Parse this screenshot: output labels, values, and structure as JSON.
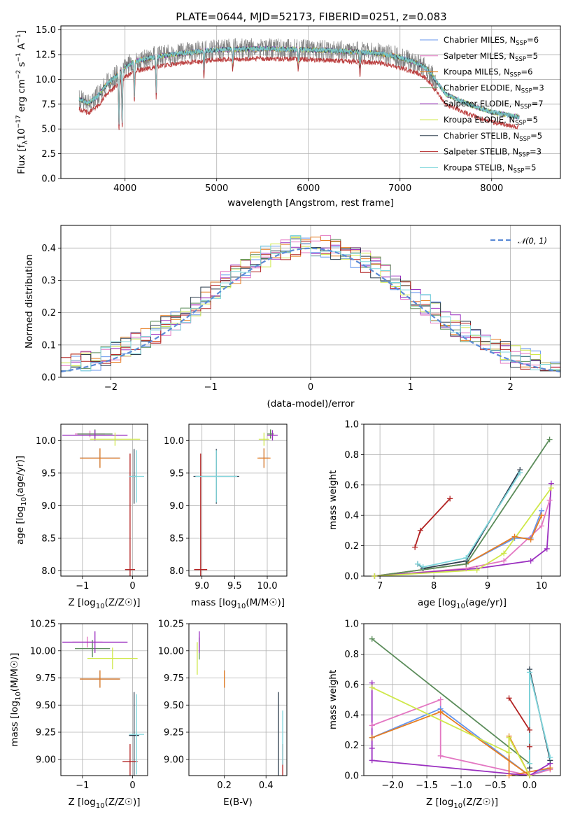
{
  "figure_title": "PLATE=0644, MJD=52173, FIBERID=0251, z=0.083",
  "colors": {
    "Chabrier MILES": "#6495ed",
    "Salpeter MILES": "#e377c2",
    "Kroupa MILES": "#e67e22",
    "Chabrier ELODIE": "#5b8c5a",
    "Salpeter ELODIE": "#9b30c0",
    "Kroupa ELODIE": "#cfe84a",
    "Chabrier STELIB": "#2f3f4f",
    "Salpeter STELIB": "#b22222",
    "Kroupa STELIB": "#7fd6dc",
    "gaussian": "#5b8bd6",
    "grid": "#b0b0b0"
  },
  "chart_data": [
    {
      "id": "spectrum",
      "type": "line",
      "xlabel": "wavelength [Angstrom, rest frame]",
      "ylabel_parts": [
        "Flux [f",
        "λ",
        "10",
        "−17",
        " erg cm",
        "−2",
        " s",
        "−1",
        " A",
        "−1",
        "]"
      ],
      "xlim": [
        3300,
        8750
      ],
      "ylim": [
        0,
        15.4
      ],
      "xticks": [
        4000,
        5000,
        6000,
        7000,
        8000
      ],
      "yticks": [
        0.0,
        2.5,
        5.0,
        7.5,
        10.0,
        12.5,
        15.0
      ],
      "legend_location": "right",
      "legend": [
        {
          "name": "Chabrier MILES",
          "nssp": "6"
        },
        {
          "name": "Salpeter MILES",
          "nssp": "5"
        },
        {
          "name": "Kroupa MILES",
          "nssp": "6"
        },
        {
          "name": "Chabrier ELODIE",
          "nssp": "3"
        },
        {
          "name": "Salpeter ELODIE",
          "nssp": "7"
        },
        {
          "name": "Kroupa ELODIE",
          "nssp": "5"
        },
        {
          "name": "Chabrier STELIB",
          "nssp": "5"
        },
        {
          "name": "Salpeter STELIB",
          "nssp": "3"
        },
        {
          "name": "Kroupa STELIB",
          "nssp": "5"
        }
      ],
      "nssp_label": "N",
      "nssp_sub": "SSP",
      "data_series": {
        "color": "#808080",
        "range": [
          3500,
          7400
        ]
      },
      "model_profile": {
        "x": [
          3500,
          3600,
          3700,
          3800,
          3900,
          4000,
          4100,
          4300,
          4500,
          4800,
          5000,
          5500,
          6000,
          6500,
          6800,
          7000,
          7200,
          7300,
          7500,
          7800,
          8000,
          8300
        ],
        "y": [
          8.0,
          7.6,
          8.3,
          9.5,
          10.3,
          11.2,
          11.8,
          12.2,
          12.5,
          12.8,
          13.0,
          13.1,
          13.0,
          12.8,
          12.6,
          12.2,
          11.6,
          11.0,
          8.5,
          7.3,
          6.7,
          6.2
        ]
      },
      "salpeter_stelib_offset": -1.0
    },
    {
      "id": "residuals",
      "type": "histogram",
      "xlabel": "(data-model)/error",
      "ylabel": "Normed distribution",
      "xlim": [
        -2.5,
        2.5
      ],
      "ylim": [
        0,
        0.47
      ],
      "xticks": [
        -2,
        -1,
        0,
        1,
        2
      ],
      "yticks": [
        0.0,
        0.1,
        0.2,
        0.3,
        0.4
      ],
      "bin_width": 0.1,
      "legend_location": "upper right",
      "gaussian_label": "𝒩(0, 1)",
      "gaussian": {
        "mean": 0,
        "sigma": 1
      }
    },
    {
      "id": "age-vs-Z",
      "type": "errorbar",
      "xlabel": "Z [log10(Z/Z☉)]",
      "ylabel": "age [log10(age/yr)]",
      "xlim": [
        -1.43,
        0.3
      ],
      "ylim": [
        7.92,
        10.25
      ],
      "xticks": [
        -1,
        0
      ],
      "yticks": [
        8.0,
        8.5,
        9.0,
        9.5,
        10.0
      ],
      "points": [
        {
          "model": "Chabrier MILES",
          "x": -0.65,
          "xerr": 0.4,
          "y": 9.73,
          "yerr": 0.15
        },
        {
          "model": "Salpeter MILES",
          "x": -0.85,
          "xerr": 0.3,
          "y": 10.1,
          "yerr": 0.05
        },
        {
          "model": "Kroupa MILES",
          "x": -0.65,
          "xerr": 0.4,
          "y": 9.73,
          "yerr": 0.15
        },
        {
          "model": "Chabrier ELODIE",
          "x": -0.75,
          "xerr": 0.35,
          "y": 10.1,
          "yerr": 0.07
        },
        {
          "model": "Salpeter ELODIE",
          "x": -0.75,
          "xerr": 0.65,
          "y": 10.08,
          "yerr": 0.08
        },
        {
          "model": "Kroupa ELODIE",
          "x": -0.35,
          "xerr": 0.5,
          "y": 10.02,
          "yerr": 0.1
        },
        {
          "model": "Chabrier STELIB",
          "x": 0.03,
          "xerr": 0.05,
          "y": 9.45,
          "yerr": 0.42
        },
        {
          "model": "Salpeter STELIB",
          "x": -0.05,
          "xerr": 0.1,
          "y": 8.02,
          "yerr": 1.78
        },
        {
          "model": "Kroupa STELIB",
          "x": 0.08,
          "xerr": 0.15,
          "y": 9.45,
          "yerr": 0.4
        }
      ]
    },
    {
      "id": "age-vs-mass",
      "type": "errorbar",
      "xlabel": "mass [log10(M/M☉)]",
      "ylabel": "",
      "xlim": [
        8.8,
        10.3
      ],
      "ylim": [
        7.92,
        10.25
      ],
      "xticks": [
        9.0,
        9.5,
        10.0
      ],
      "yticks": [
        8.0,
        8.5,
        9.0,
        9.5,
        10.0
      ],
      "points": [
        {
          "model": "Chabrier MILES",
          "x": 9.95,
          "xerr": 0.08,
          "y": 9.73,
          "yerr": 0.15
        },
        {
          "model": "Salpeter MILES",
          "x": 10.08,
          "xerr": 0.05,
          "y": 10.08,
          "yerr": 0.05
        },
        {
          "model": "Kroupa MILES",
          "x": 9.95,
          "xerr": 0.1,
          "y": 9.73,
          "yerr": 0.15
        },
        {
          "model": "Chabrier ELODIE",
          "x": 10.05,
          "xerr": 0.05,
          "y": 10.1,
          "yerr": 0.07
        },
        {
          "model": "Salpeter ELODIE",
          "x": 10.08,
          "xerr": 0.08,
          "y": 10.08,
          "yerr": 0.08
        },
        {
          "model": "Kroupa ELODIE",
          "x": 9.95,
          "xerr": 0.08,
          "y": 10.02,
          "yerr": 0.1
        },
        {
          "model": "Chabrier STELIB",
          "x": 9.22,
          "xerr": 0.35,
          "y": 9.45,
          "yerr": 0.42
        },
        {
          "model": "Salpeter STELIB",
          "x": 8.98,
          "xerr": 0.1,
          "y": 8.02,
          "yerr": 1.78
        },
        {
          "model": "Kroupa STELIB",
          "x": 9.22,
          "xerr": 0.32,
          "y": 9.45,
          "yerr": 0.4
        }
      ]
    },
    {
      "id": "weight-vs-age",
      "type": "line",
      "xlabel": "age [log10(age/yr)]",
      "ylabel": "mass weight",
      "xlim": [
        6.7,
        10.35
      ],
      "ylim": [
        0,
        1.0
      ],
      "xticks": [
        7,
        8,
        9,
        10
      ],
      "yticks": [
        0.0,
        0.2,
        0.4,
        0.6,
        0.8,
        1.0
      ],
      "series": [
        {
          "model": "Chabrier MILES",
          "x": [
            6.9,
            8.6,
            9.5,
            9.8,
            10.0
          ],
          "y": [
            0.0,
            0.08,
            0.25,
            0.25,
            0.43
          ]
        },
        {
          "model": "Salpeter MILES",
          "x": [
            6.9,
            8.6,
            9.3,
            10.0,
            10.15
          ],
          "y": [
            0.0,
            0.05,
            0.1,
            0.33,
            0.5
          ]
        },
        {
          "model": "Kroupa MILES",
          "x": [
            6.9,
            8.6,
            9.5,
            9.8,
            10.0
          ],
          "y": [
            0.0,
            0.08,
            0.26,
            0.24,
            0.4
          ]
        },
        {
          "model": "Chabrier ELODIE",
          "x": [
            6.9,
            8.6,
            10.15
          ],
          "y": [
            0.0,
            0.08,
            0.9
          ]
        },
        {
          "model": "Salpeter ELODIE",
          "x": [
            6.9,
            8.8,
            9.8,
            10.1,
            10.18
          ],
          "y": [
            0.0,
            0.05,
            0.1,
            0.18,
            0.61
          ]
        },
        {
          "model": "Kroupa ELODIE",
          "x": [
            6.9,
            8.8,
            9.3,
            10.18
          ],
          "y": [
            0.0,
            0.04,
            0.15,
            0.58
          ]
        },
        {
          "model": "Chabrier STELIB",
          "x": [
            7.7,
            7.8,
            8.6,
            9.6
          ],
          "y": [
            0.08,
            0.05,
            0.1,
            0.7
          ]
        },
        {
          "model": "Salpeter STELIB",
          "x": [
            7.65,
            7.75,
            8.3
          ],
          "y": [
            0.19,
            0.3,
            0.51
          ]
        },
        {
          "model": "Kroupa STELIB",
          "x": [
            7.7,
            7.8,
            8.6,
            9.6
          ],
          "y": [
            0.08,
            0.06,
            0.12,
            0.68
          ]
        }
      ]
    },
    {
      "id": "mass-vs-Z",
      "type": "errorbar",
      "xlabel": "Z [log10(Z/Z☉)]",
      "ylabel": "mass [log10(M/M☉)]",
      "xlim": [
        -1.43,
        0.3
      ],
      "ylim": [
        8.85,
        10.25
      ],
      "xticks": [
        -1,
        0
      ],
      "yticks": [
        9.0,
        9.25,
        9.5,
        9.75,
        10.0,
        10.25
      ],
      "points": [
        {
          "model": "Chabrier MILES",
          "x": -0.65,
          "xerr": 0.4,
          "y": 9.74,
          "yerr": 0.08
        },
        {
          "model": "Salpeter MILES",
          "x": -0.9,
          "xerr": 0.3,
          "y": 10.08,
          "yerr": 0.05
        },
        {
          "model": "Kroupa MILES",
          "x": -0.65,
          "xerr": 0.4,
          "y": 9.74,
          "yerr": 0.08
        },
        {
          "model": "Chabrier ELODIE",
          "x": -0.8,
          "xerr": 0.35,
          "y": 10.02,
          "yerr": 0.08
        },
        {
          "model": "Salpeter ELODIE",
          "x": -0.75,
          "xerr": 0.65,
          "y": 10.08,
          "yerr": 0.1
        },
        {
          "model": "Kroupa ELODIE",
          "x": -0.4,
          "xerr": 0.5,
          "y": 9.93,
          "yerr": 0.1
        },
        {
          "model": "Chabrier STELIB",
          "x": 0.03,
          "xerr": 0.1,
          "y": 9.22,
          "yerr": 0.4
        },
        {
          "model": "Salpeter STELIB",
          "x": -0.05,
          "xerr": 0.15,
          "y": 8.98,
          "yerr": 0.16
        },
        {
          "model": "Kroupa STELIB",
          "x": 0.08,
          "xerr": 0.15,
          "y": 9.23,
          "yerr": 0.37
        }
      ]
    },
    {
      "id": "mass-vs-ebv",
      "type": "errorbar",
      "xlabel": "E(B-V)",
      "ylabel": "",
      "xlim": [
        0.03,
        0.5
      ],
      "ylim": [
        8.85,
        10.25
      ],
      "xticks": [
        0.2,
        0.4
      ],
      "yticks": [
        9.0,
        9.25,
        9.5,
        9.75,
        10.0,
        10.25
      ],
      "points": [
        {
          "model": "Chabrier MILES",
          "x": 0.2,
          "xerr": 0.0,
          "y": 9.74,
          "yerr": 0.08
        },
        {
          "model": "Salpeter MILES",
          "x": 0.08,
          "xerr": 0.0,
          "y": 10.08,
          "yerr": 0.05
        },
        {
          "model": "Kroupa MILES",
          "x": 0.2,
          "xerr": 0.0,
          "y": 9.74,
          "yerr": 0.08
        },
        {
          "model": "Chabrier ELODIE",
          "x": 0.08,
          "xerr": 0.0,
          "y": 10.02,
          "yerr": 0.1
        },
        {
          "model": "Salpeter ELODIE",
          "x": 0.08,
          "xerr": 0.0,
          "y": 10.08,
          "yerr": 0.1
        },
        {
          "model": "Kroupa ELODIE",
          "x": 0.07,
          "xerr": 0.0,
          "y": 9.93,
          "yerr": 0.15
        },
        {
          "model": "Chabrier STELIB",
          "x": 0.46,
          "xerr": 0.0,
          "y": 9.22,
          "yerr": 0.4
        },
        {
          "model": "Salpeter STELIB",
          "x": 0.48,
          "xerr": 0.0,
          "y": 8.98,
          "yerr": 0.16
        },
        {
          "model": "Kroupa STELIB",
          "x": 0.48,
          "xerr": 0.0,
          "y": 9.2,
          "yerr": 0.25
        }
      ]
    },
    {
      "id": "weight-vs-Z",
      "type": "line",
      "xlabel": "Z [log10(Z/Z☉)]",
      "ylabel": "mass weight",
      "xlim": [
        -2.42,
        0.45
      ],
      "ylim": [
        0,
        1.0
      ],
      "xticks": [
        -2.0,
        -1.5,
        -1.0,
        -0.5,
        0.0
      ],
      "yticks": [
        0.0,
        0.2,
        0.4,
        0.6,
        0.8,
        1.0
      ],
      "series": [
        {
          "model": "Chabrier MILES",
          "x": [
            -2.3,
            -1.3,
            0.0,
            0.3
          ],
          "y": [
            0.25,
            0.44,
            0.0,
            0.05
          ]
        },
        {
          "model": "Salpeter MILES",
          "x": [
            -2.3,
            -1.3,
            -1.3,
            0.0,
            0.3
          ],
          "y": [
            0.33,
            0.5,
            0.13,
            0.0,
            0.04
          ]
        },
        {
          "model": "Kroupa MILES",
          "x": [
            -2.3,
            -1.3,
            0.0,
            -0.3,
            -0.3,
            0.3
          ],
          "y": [
            0.25,
            0.42,
            0.0,
            0.26,
            0.0,
            0.05
          ]
        },
        {
          "model": "Chabrier ELODIE",
          "x": [
            -2.3,
            0.0
          ],
          "y": [
            0.9,
            0.08
          ]
        },
        {
          "model": "Salpeter ELODIE",
          "x": [
            -2.3,
            -2.3,
            -2.3,
            0.0,
            0.3
          ],
          "y": [
            0.61,
            0.18,
            0.1,
            0.0,
            0.08
          ]
        },
        {
          "model": "Kroupa ELODIE",
          "x": [
            -2.3,
            -0.3,
            -0.3,
            0.0
          ],
          "y": [
            0.58,
            0.15,
            0.25,
            0.0
          ]
        },
        {
          "model": "Chabrier STELIB",
          "x": [
            0.0,
            0.0,
            0.3
          ],
          "y": [
            0.05,
            0.7,
            0.1
          ]
        },
        {
          "model": "Salpeter STELIB",
          "x": [
            -0.3,
            0.0,
            0.0
          ],
          "y": [
            0.51,
            0.3,
            0.19
          ]
        },
        {
          "model": "Kroupa STELIB",
          "x": [
            0.0,
            0.0,
            0.3
          ],
          "y": [
            0.08,
            0.68,
            0.12
          ]
        }
      ]
    }
  ]
}
